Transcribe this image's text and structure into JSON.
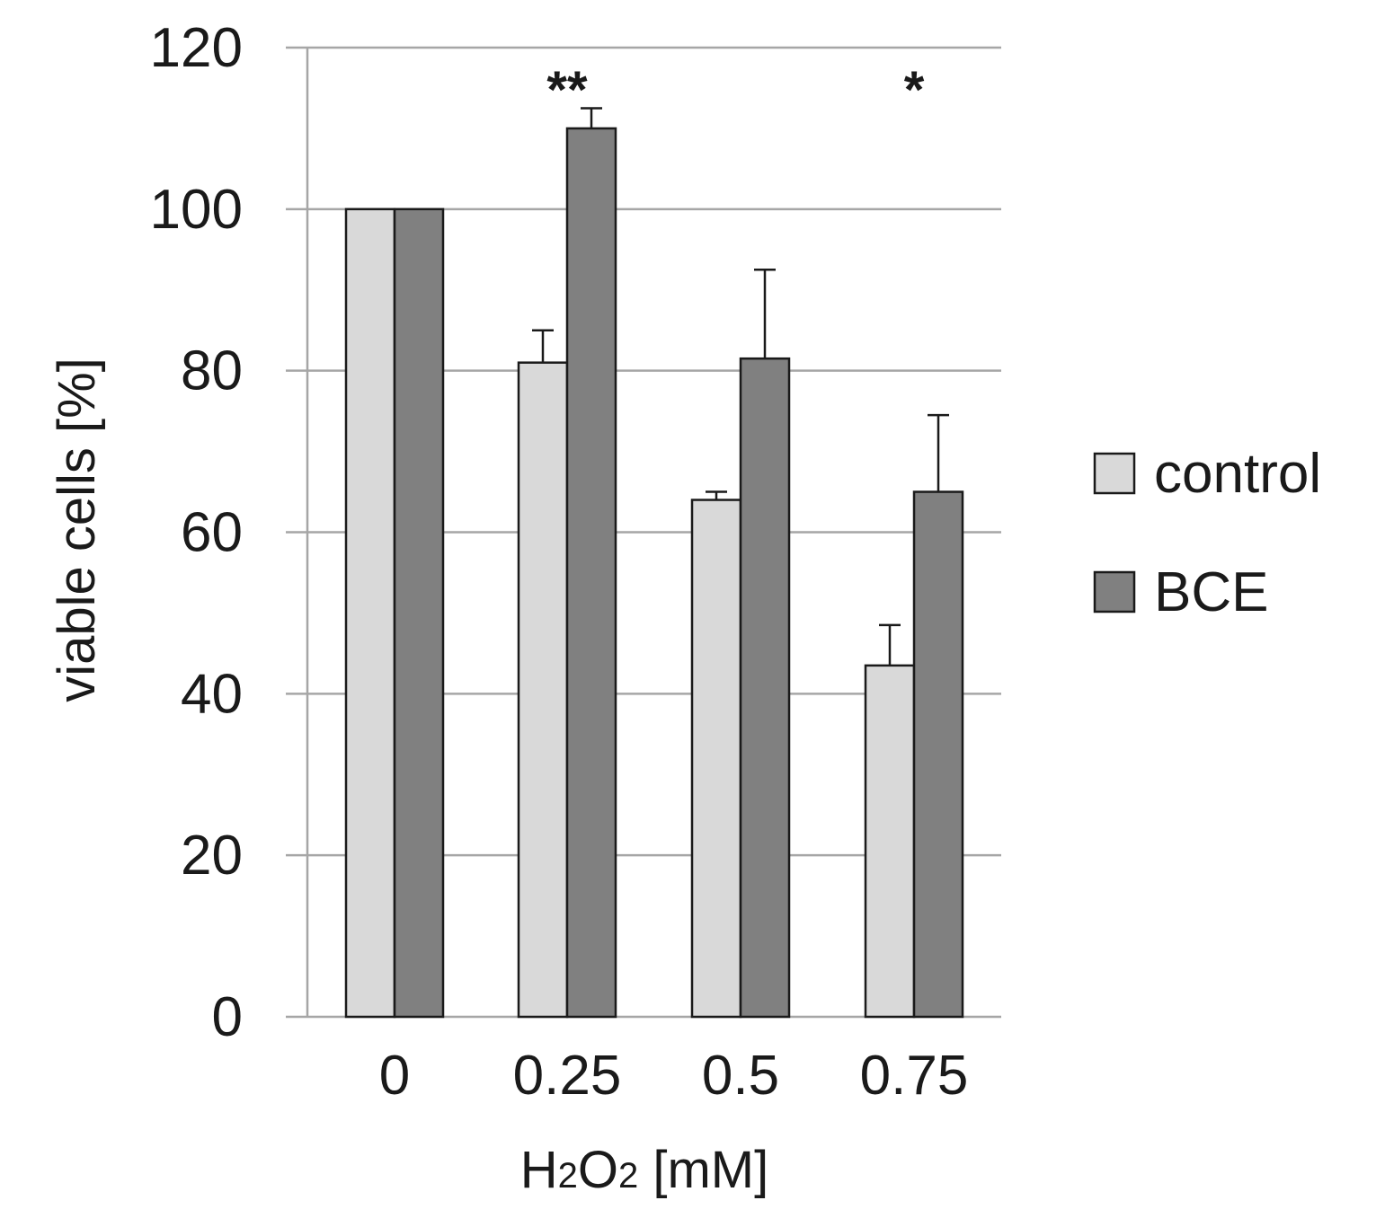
{
  "chart_data": {
    "type": "bar",
    "categories": [
      "0",
      "0.25",
      "0.5",
      "0.75"
    ],
    "series": [
      {
        "name": "control",
        "color": "#d9d9d9",
        "values": [
          100,
          81,
          64,
          43.5
        ],
        "errors": [
          0,
          4,
          1,
          5
        ]
      },
      {
        "name": "BCE",
        "color": "#808080",
        "values": [
          100,
          110,
          81.5,
          65
        ],
        "errors": [
          0,
          2.5,
          11,
          9.5
        ]
      }
    ],
    "significance": [
      {
        "category_index": 1,
        "label": "**"
      },
      {
        "category_index": 3,
        "label": "*"
      }
    ],
    "xlabel": "H2O2 [mM]",
    "xlabel_parts": {
      "pre": "H",
      "sub1": "2",
      "mid": "O",
      "sub2": "2",
      "post": " [mM]"
    },
    "ylabel": "viable cells [%]",
    "ylim": [
      0,
      120
    ],
    "yticks": [
      0,
      20,
      40,
      60,
      80,
      100,
      120
    ],
    "grid": true,
    "legend_position": "right"
  }
}
